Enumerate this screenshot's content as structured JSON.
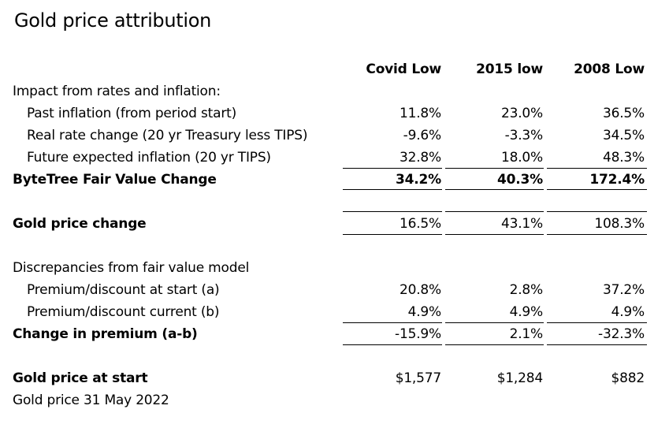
{
  "title": "Gold price attribution",
  "columns": [
    "Covid Low",
    "2015 low",
    "2008 Low"
  ],
  "sections": {
    "rates_inflation": {
      "heading": "Impact from rates and inflation:",
      "rows": [
        {
          "label": "Past inflation (from period start)",
          "values": [
            "11.8%",
            "23.0%",
            "36.5%"
          ]
        },
        {
          "label": "Real rate change (20 yr Treasury less TIPS)",
          "values": [
            "-9.6%",
            "-3.3%",
            "34.5%"
          ]
        },
        {
          "label": "Future expected inflation (20 yr TIPS)",
          "values": [
            "32.8%",
            "18.0%",
            "48.3%"
          ]
        }
      ],
      "total": {
        "label": "ByteTree Fair Value Change",
        "values": [
          "34.2%",
          "40.3%",
          "172.4%"
        ]
      }
    },
    "gold_price_change": {
      "label": "Gold price change",
      "values": [
        "16.5%",
        "43.1%",
        "108.3%"
      ]
    },
    "discrepancies": {
      "heading": "Discrepancies from fair value model",
      "rows": [
        {
          "label": "Premium/discount at start (a)",
          "values": [
            "20.8%",
            "2.8%",
            "37.2%"
          ]
        },
        {
          "label": "Premium/discount current (b)",
          "values": [
            "4.9%",
            "4.9%",
            "4.9%"
          ]
        }
      ],
      "total": {
        "label": "Change in premium (a-b)",
        "values": [
          "-15.9%",
          "2.1%",
          "-32.3%"
        ]
      }
    },
    "gold_price_start": {
      "label": "Gold price at start",
      "values": [
        "$1,577",
        "$1,284",
        "$882"
      ]
    },
    "footnote": "Gold price 31 May 2022"
  }
}
